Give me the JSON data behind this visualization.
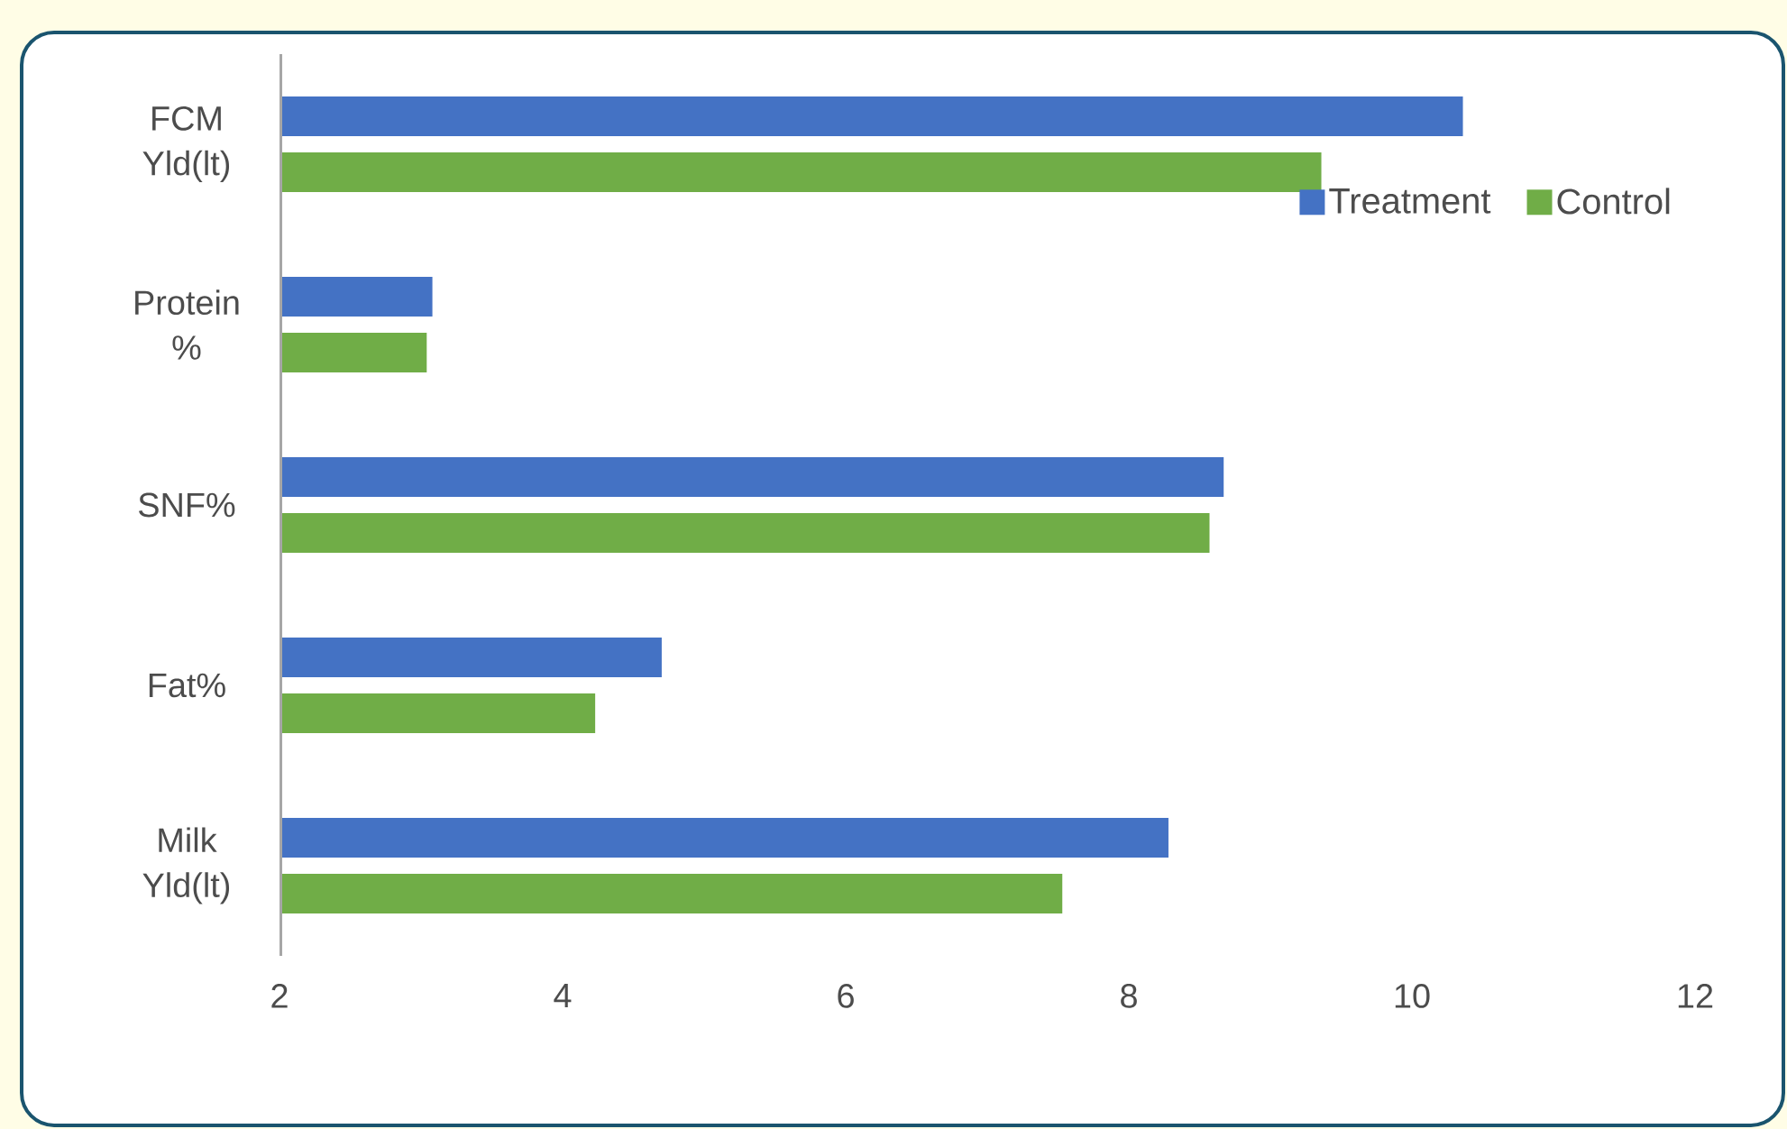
{
  "chart_data": {
    "type": "bar",
    "orientation": "horizontal",
    "categories": [
      "FCM Yld(lt)",
      "Protein %",
      "SNF%",
      "Fat%",
      "Milk Yld(lt)"
    ],
    "series": [
      {
        "name": "Treatment",
        "color": "#4472c4",
        "values": [
          10.36,
          3.08,
          8.67,
          4.7,
          8.28
        ]
      },
      {
        "name": "Control",
        "color": "#70ad47",
        "values": [
          9.36,
          3.04,
          8.57,
          4.23,
          7.53
        ]
      }
    ],
    "xlim": [
      2,
      12
    ],
    "xticks": [
      2,
      4,
      6,
      8,
      10,
      12
    ],
    "grid": false,
    "legend": "top right"
  }
}
